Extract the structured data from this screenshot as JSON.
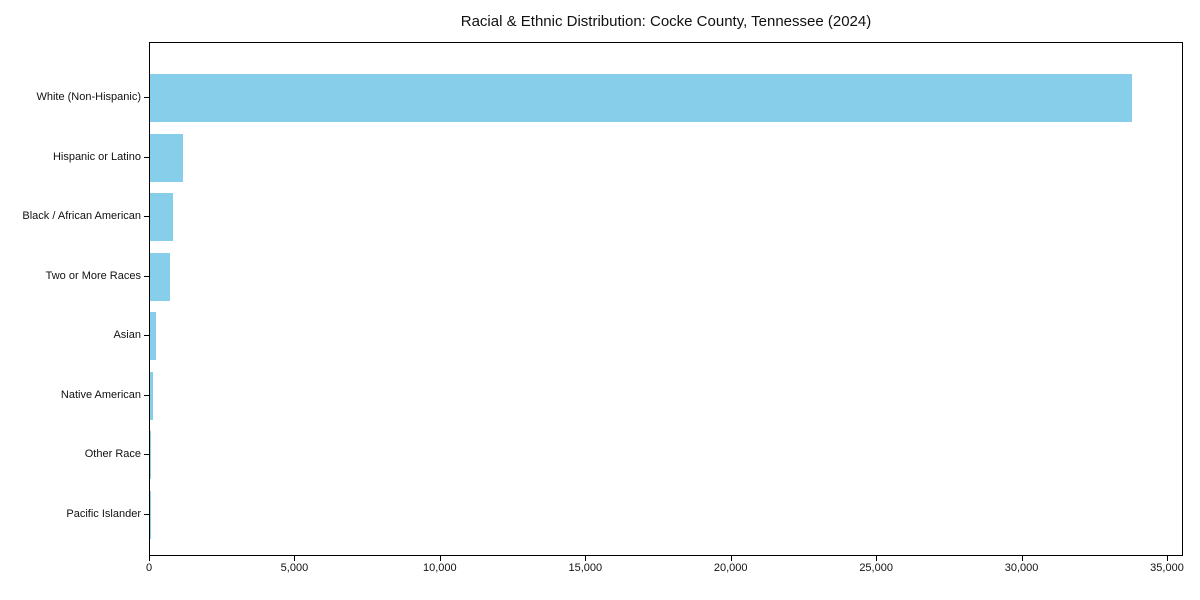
{
  "chart_data": {
    "type": "bar",
    "orientation": "horizontal",
    "title": "Racial & Ethnic Distribution: Cocke County, Tennessee (2024)",
    "categories": [
      "White (Non-Hispanic)",
      "Hispanic or Latino",
      "Black / African American",
      "Two or More Races",
      "Asian",
      "Native American",
      "Other Race",
      "Pacific Islander"
    ],
    "values": [
      33830,
      1120,
      780,
      700,
      190,
      100,
      20,
      10
    ],
    "xlabel": "",
    "ylabel": "",
    "xlim": [
      0,
      35550
    ],
    "x_ticks": [
      0,
      5000,
      10000,
      15000,
      20000,
      25000,
      30000,
      35000
    ],
    "x_tick_labels": [
      "0",
      "5,000",
      "10,000",
      "15,000",
      "20,000",
      "25,000",
      "30,000",
      "35,000"
    ],
    "bar_color": "#87ceeb",
    "axis_color": "#000000",
    "text_color": "#111111",
    "background_color": "#ffffff",
    "grid": false,
    "legend": false
  }
}
